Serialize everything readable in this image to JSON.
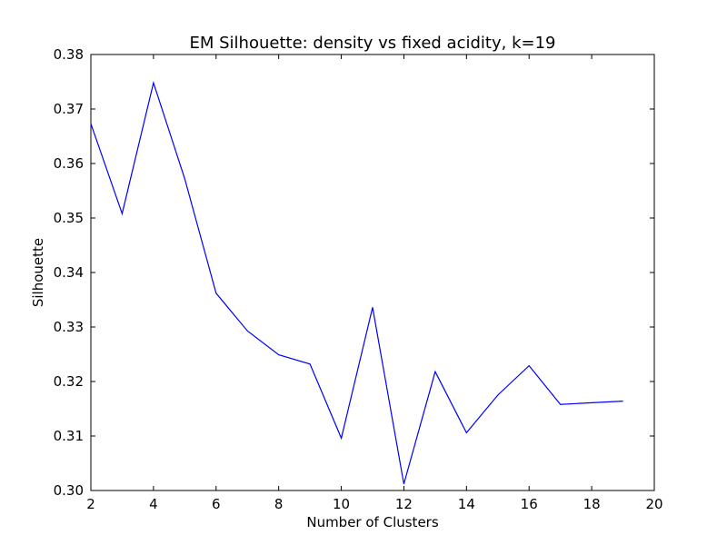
{
  "chart_data": {
    "type": "line",
    "title": "EM Silhouette: density vs fixed acidity, k=19",
    "xlabel": "Number of Clusters",
    "ylabel": "Silhouette",
    "xlim": [
      2,
      20
    ],
    "ylim": [
      0.3,
      0.38
    ],
    "xticks": [
      "2",
      "4",
      "6",
      "8",
      "10",
      "12",
      "14",
      "16",
      "18",
      "20"
    ],
    "yticks": [
      "0.30",
      "0.31",
      "0.32",
      "0.33",
      "0.34",
      "0.35",
      "0.36",
      "0.37",
      "0.38"
    ],
    "grid": false,
    "series": [
      {
        "color": "#0000ff",
        "x": [
          2,
          3,
          4,
          5,
          6,
          7,
          8,
          9,
          10,
          11,
          12,
          13,
          14,
          15,
          16,
          17,
          18,
          19
        ],
        "y": [
          0.3673,
          0.3508,
          0.3748,
          0.3572,
          0.3362,
          0.3293,
          0.3249,
          0.3232,
          0.3096,
          0.3336,
          0.3012,
          0.3218,
          0.3106,
          0.3175,
          0.3229,
          0.3158,
          0.3161,
          0.3164
        ]
      }
    ]
  }
}
